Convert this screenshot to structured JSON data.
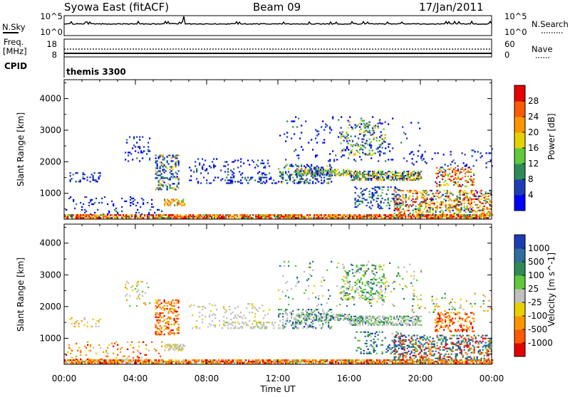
{
  "header": {
    "station": "Syowa East (fitACF)",
    "beam": "Beam 09",
    "date": "17/Jan/2011"
  },
  "status_panel": {
    "nsky_label": "N.Sky",
    "nsearch_label": "N.Search",
    "log_ticks": [
      "10^5",
      "10^0"
    ],
    "freq_label": "Freq.",
    "freq_unit": "[MHz]",
    "freq_ticks": [
      "18",
      "8"
    ],
    "nave_label": "Nave",
    "nave_ticks": [
      "60",
      "0"
    ],
    "cpid_label": "CPID",
    "cpid_value": "themis 3300"
  },
  "chart_data": [
    {
      "type": "heatmap",
      "ylabel": "Slant Range [km]",
      "xlabel": "Time UT",
      "ylim": [
        180,
        4600
      ],
      "xlim": [
        "00:00",
        "24:00"
      ],
      "y_ticks": [
        1000,
        2000,
        3000,
        4000
      ],
      "x_tick_labels": [
        "00:00",
        "04:00",
        "08:00",
        "12:00",
        "16:00",
        "20:00",
        "00:00"
      ],
      "colorbar": {
        "label": "Power [dB]",
        "ticks": [
          "4",
          "8",
          "12",
          "16",
          "20",
          "24",
          "28"
        ],
        "colors": [
          "#0000ff",
          "#1e3cb4",
          "#2e8b57",
          "#5fc83c",
          "#e6d200",
          "#ff9600",
          "#ff5a00",
          "#e60000"
        ]
      }
    },
    {
      "type": "heatmap",
      "ylabel": "Slant Range [km]",
      "xlabel": "Time UT",
      "ylim": [
        180,
        4600
      ],
      "xlim": [
        "00:00",
        "24:00"
      ],
      "y_ticks": [
        1000,
        2000,
        3000,
        4000
      ],
      "x_tick_labels": [
        "00:00",
        "04:00",
        "08:00",
        "12:00",
        "16:00",
        "20:00",
        "00:00"
      ],
      "colorbar": {
        "label": "Velocity [m s^-1]",
        "ticks": [
          "1000",
          "500",
          "100",
          "25",
          "-25",
          "-100",
          "-500",
          "-1000"
        ],
        "colors": [
          "#1e3cb4",
          "#2e6e9e",
          "#2e8b57",
          "#5fc83c",
          "#c0c0c0",
          "#e6d200",
          "#ff9600",
          "#ff5a00",
          "#e60000"
        ]
      }
    }
  ]
}
